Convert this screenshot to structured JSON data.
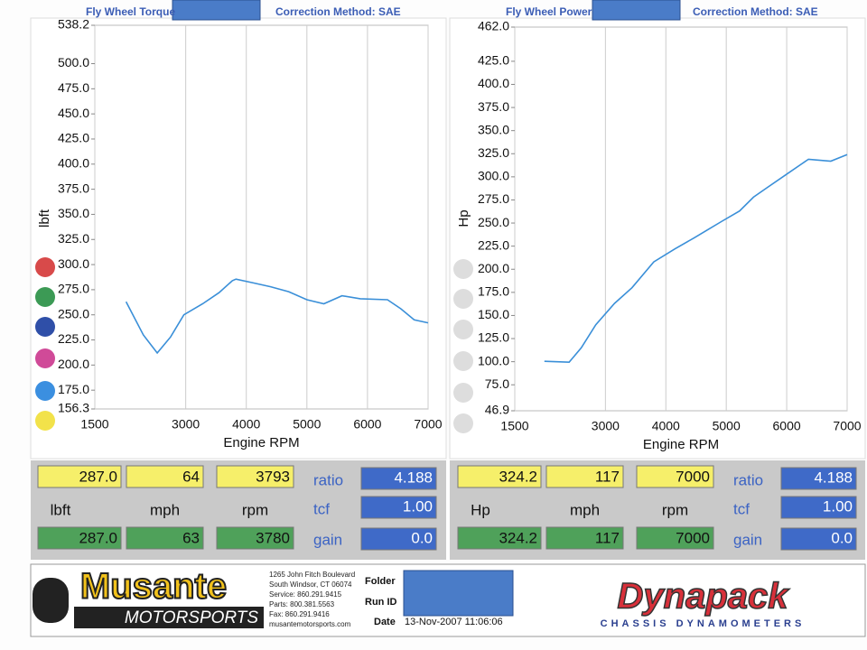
{
  "chart_data": [
    {
      "type": "line",
      "title": "Fly Wheel Torque",
      "subtitle": "Correction Method: SAE",
      "x_label": "Engine RPM",
      "y_label": "lbft",
      "color": "#3a8fd8",
      "grid": "x",
      "xlim": [
        1500,
        7000
      ],
      "xticks": [
        1500,
        3000,
        4000,
        5000,
        6000,
        7000
      ],
      "ylim": [
        156.3,
        538.2
      ],
      "yticks": [
        156.3,
        {
          "value": 175,
          "label": "175.0"
        },
        {
          "value": 200,
          "label": "200.0"
        },
        {
          "value": 225,
          "label": "225.0"
        },
        {
          "value": 250,
          "label": "250.0"
        },
        {
          "value": 275,
          "label": "275.0"
        },
        {
          "value": 300,
          "label": "300.0"
        },
        {
          "value": 325,
          "label": "325.0"
        },
        {
          "value": 350,
          "label": "350.0"
        },
        {
          "value": 375,
          "label": "375.0"
        },
        {
          "value": 400,
          "label": "400.0"
        },
        {
          "value": 425,
          "label": "425.0"
        },
        {
          "value": 450,
          "label": "450.0"
        },
        {
          "value": 475,
          "label": "475.0"
        },
        {
          "value": 500,
          "label": "500.0"
        },
        538.2
      ],
      "x": [
        2015,
        2300,
        2530,
        2750,
        2970,
        3280,
        3550,
        3770,
        3830,
        4100,
        4400,
        4700,
        5000,
        5280,
        5580,
        5880,
        6330,
        6550,
        6770,
        7000
      ],
      "values": [
        263,
        230,
        212,
        228,
        250,
        261,
        272,
        284,
        285.5,
        282,
        278,
        273,
        265,
        261,
        269,
        266,
        265,
        256,
        245,
        242
      ]
    },
    {
      "type": "line",
      "title": "Fly Wheel Power",
      "subtitle": "Correction Method: SAE",
      "x_label": "Engine RPM",
      "y_label": "Hp",
      "color": "#3a8fd8",
      "grid": "x",
      "xlim": [
        1500,
        7000
      ],
      "xticks": [
        1500,
        3000,
        4000,
        5000,
        6000,
        7000
      ],
      "ylim": [
        46.9,
        462.0
      ],
      "yticks": [
        46.9,
        {
          "value": 75,
          "label": "75.0"
        },
        {
          "value": 100,
          "label": "100.0"
        },
        {
          "value": 125,
          "label": "125.0"
        },
        {
          "value": 150,
          "label": "150.0"
        },
        {
          "value": 175,
          "label": "175.0"
        },
        {
          "value": 200,
          "label": "200.0"
        },
        {
          "value": 225,
          "label": "225.0"
        },
        {
          "value": 250,
          "label": "250.0"
        },
        {
          "value": 275,
          "label": "275.0"
        },
        {
          "value": 300,
          "label": "300.0"
        },
        {
          "value": 325,
          "label": "325.0"
        },
        {
          "value": 350,
          "label": "350.0"
        },
        {
          "value": 375,
          "label": "375.0"
        },
        {
          "value": 400,
          "label": "400.0"
        },
        {
          "value": 425,
          "label": "425.0"
        },
        {
          "value": 462,
          "label": "462.0"
        }
      ],
      "x": [
        1990,
        2400,
        2600,
        2840,
        3150,
        3440,
        3800,
        4150,
        4470,
        4930,
        5220,
        5450,
        5670,
        5980,
        6360,
        6730,
        7000
      ],
      "values": [
        100.4,
        99.4,
        115,
        140,
        163,
        180,
        208,
        222,
        234,
        252,
        263,
        278,
        288,
        302,
        319,
        317,
        324
      ]
    }
  ],
  "readouts": [
    {
      "top": [
        "287.0",
        "64",
        "3793"
      ],
      "units": [
        "lbft",
        "mph",
        "rpm"
      ],
      "bottom": [
        "287.0",
        "63",
        "3780"
      ],
      "ratio_label": "ratio",
      "ratio": "4.188",
      "tcf_label": "tcf",
      "tcf": "1.00",
      "gain_label": "gain",
      "gain": "0.0"
    },
    {
      "top": [
        "324.2",
        "117",
        "7000"
      ],
      "units": [
        "Hp",
        "mph",
        "rpm"
      ],
      "bottom": [
        "324.2",
        "117",
        "7000"
      ],
      "ratio_label": "ratio",
      "ratio": "4.188",
      "tcf_label": "tcf",
      "tcf": "1.00",
      "gain_label": "gain",
      "gain": "0.0"
    }
  ],
  "footer": {
    "company": "Musante",
    "division": "MOTORSPORTS",
    "address": [
      "1265 John Fitch Boulevard",
      "South Windsor, CT 06074",
      "Service: 860.291.9415",
      "Parts: 800.381.5563",
      "Fax: 860.291.9416",
      "musantemotorsports.com"
    ],
    "folder_label": "Folder",
    "run_id_label": "Run ID",
    "date_label": "Date",
    "date": "13-Nov-2007  11:06:06",
    "brand": "Dynapack",
    "brand_sub": "CHASSIS DYNAMOMETERS"
  }
}
